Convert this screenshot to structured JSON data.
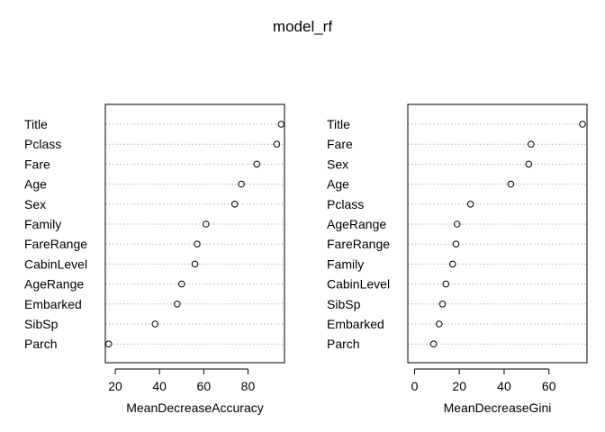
{
  "title": "model_rf",
  "chart_data": [
    {
      "type": "scatter",
      "xlabel": "MeanDecreaseAccuracy",
      "xticks": [
        20,
        40,
        60,
        80
      ],
      "xlim": [
        15.5,
        96.5
      ],
      "categories": [
        "Title",
        "Pclass",
        "Fare",
        "Age",
        "Sex",
        "Family",
        "FareRange",
        "CabinLevel",
        "AgeRange",
        "Embarked",
        "SibSp",
        "Parch"
      ],
      "values": [
        95,
        93,
        84,
        77,
        74,
        61,
        57,
        56,
        50,
        48,
        38,
        17
      ],
      "grid": "dotted horizontal"
    },
    {
      "type": "scatter",
      "xlabel": "MeanDecreaseGini",
      "xticks": [
        0,
        20,
        40,
        60
      ],
      "xlim": [
        -3,
        77
      ],
      "categories": [
        "Title",
        "Fare",
        "Sex",
        "Age",
        "Pclass",
        "AgeRange",
        "FareRange",
        "Family",
        "CabinLevel",
        "SibSp",
        "Embarked",
        "Parch"
      ],
      "values": [
        75,
        52,
        51,
        43,
        25,
        19,
        18.5,
        17,
        14,
        12.5,
        11,
        8.5
      ],
      "grid": "dotted horizontal"
    }
  ]
}
